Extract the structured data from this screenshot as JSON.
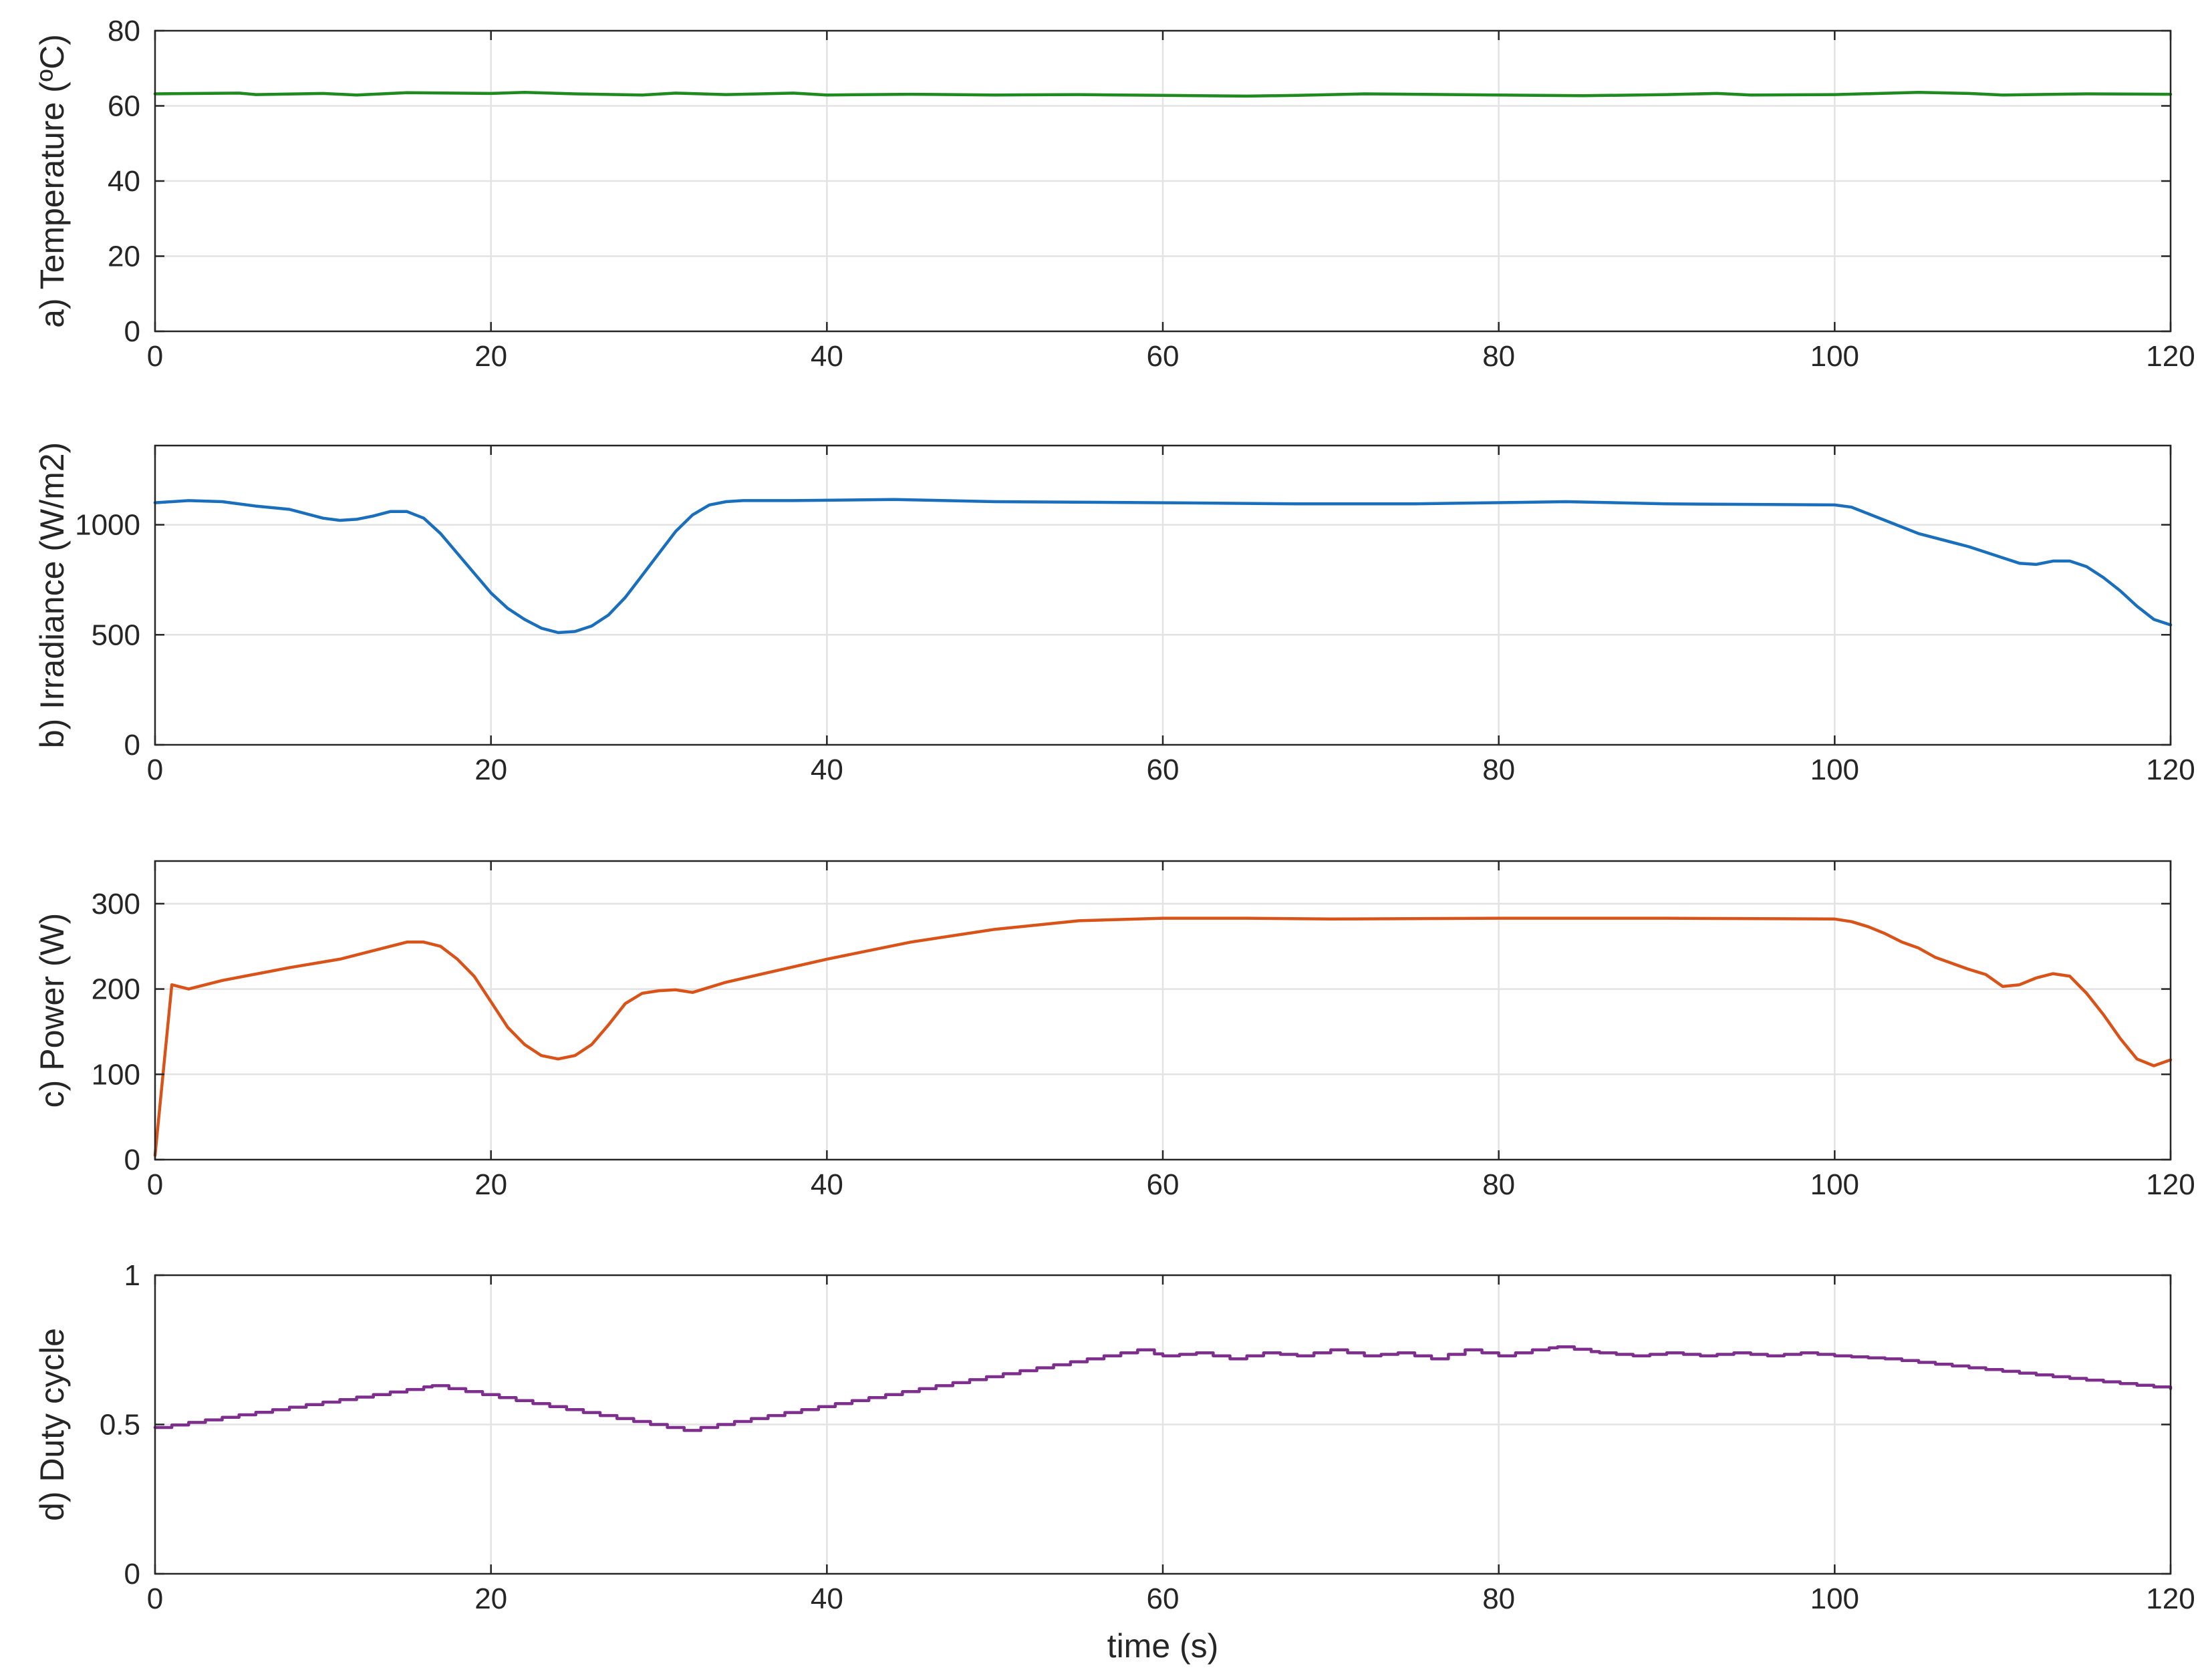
{
  "chart_data": [
    {
      "type": "line",
      "panel": "a",
      "title": "",
      "xlabel": "",
      "ylabel": "a) Temperature (ºC)",
      "xlim": [
        0,
        120
      ],
      "ylim": [
        0,
        80
      ],
      "xticks": [
        "0",
        "20",
        "40",
        "60",
        "80",
        "100",
        "120"
      ],
      "yticks": [
        "0",
        "20",
        "40",
        "60",
        "80"
      ],
      "grid": true,
      "series": [
        {
          "color": "#1f8a1f",
          "x": [
            0,
            5,
            6,
            10,
            12,
            15,
            20,
            22,
            25,
            29,
            31,
            34,
            38,
            40,
            45,
            50,
            55,
            60,
            65,
            68,
            72,
            75,
            80,
            85,
            90,
            93,
            95,
            100,
            105,
            108,
            110,
            115,
            120
          ],
          "y": [
            63.2,
            63.4,
            63.0,
            63.3,
            62.9,
            63.5,
            63.3,
            63.6,
            63.2,
            62.9,
            63.4,
            63.0,
            63.4,
            62.9,
            63.1,
            62.9,
            63.0,
            62.8,
            62.6,
            62.8,
            63.2,
            63.1,
            62.9,
            62.7,
            63.0,
            63.3,
            62.9,
            63.0,
            63.6,
            63.3,
            62.9,
            63.2,
            63.1
          ]
        }
      ]
    },
    {
      "type": "line",
      "panel": "b",
      "title": "",
      "xlabel": "",
      "ylabel": "b) Irradiance (W/m2)",
      "xlim": [
        0,
        120
      ],
      "ylim": [
        0,
        1360
      ],
      "xticks": [
        "0",
        "20",
        "40",
        "60",
        "80",
        "100",
        "120"
      ],
      "yticks": [
        "0",
        "500",
        "1000"
      ],
      "grid": true,
      "series": [
        {
          "color": "#1a6fbd",
          "x": [
            0,
            2,
            4,
            6,
            8,
            10,
            11,
            12,
            13,
            14,
            15,
            16,
            17,
            18,
            19,
            20,
            21,
            22,
            23,
            24,
            25,
            26,
            27,
            28,
            29,
            30,
            31,
            32,
            33,
            34,
            35,
            38,
            44,
            50,
            60,
            68,
            75,
            84,
            90,
            100,
            101,
            103,
            105,
            108,
            110,
            111,
            112,
            113,
            114,
            115,
            116,
            117,
            118,
            119,
            120
          ],
          "y": [
            1100,
            1110,
            1105,
            1085,
            1070,
            1030,
            1020,
            1025,
            1040,
            1060,
            1060,
            1030,
            960,
            870,
            780,
            690,
            620,
            570,
            530,
            510,
            515,
            540,
            590,
            670,
            770,
            870,
            970,
            1045,
            1090,
            1105,
            1110,
            1110,
            1115,
            1105,
            1100,
            1095,
            1095,
            1105,
            1095,
            1090,
            1080,
            1020,
            960,
            900,
            850,
            825,
            820,
            835,
            835,
            810,
            760,
            700,
            630,
            570,
            545
          ]
        }
      ]
    },
    {
      "type": "line",
      "panel": "c",
      "title": "",
      "xlabel": "",
      "ylabel": "c) Power (W)",
      "xlim": [
        0,
        120
      ],
      "ylim": [
        0,
        350
      ],
      "xticks": [
        "0",
        "20",
        "40",
        "60",
        "80",
        "100",
        "120"
      ],
      "yticks": [
        "0",
        "100",
        "200",
        "300"
      ],
      "grid": true,
      "series": [
        {
          "color": "#d95319",
          "x": [
            0,
            1,
            2,
            4,
            8,
            11,
            14,
            15,
            16,
            17,
            18,
            19,
            20,
            21,
            22,
            23,
            24,
            25,
            26,
            27,
            28,
            29,
            30,
            31,
            32,
            34,
            40,
            45,
            50,
            55,
            60,
            65,
            70,
            80,
            85,
            90,
            100,
            101,
            102,
            103,
            104,
            105,
            106,
            107,
            108,
            109,
            110,
            111,
            112,
            113,
            114,
            115,
            116,
            117,
            118,
            119,
            120
          ],
          "y": [
            5,
            205,
            200,
            210,
            225,
            235,
            250,
            255,
            255,
            250,
            235,
            215,
            185,
            155,
            135,
            122,
            118,
            122,
            135,
            158,
            183,
            195,
            198,
            199,
            196,
            208,
            235,
            255,
            270,
            280,
            283,
            283,
            282,
            283,
            283,
            283,
            282,
            279,
            273,
            265,
            255,
            248,
            237,
            230,
            223,
            217,
            203,
            205,
            213,
            218,
            215,
            195,
            170,
            142,
            118,
            110,
            117
          ]
        }
      ]
    },
    {
      "type": "line",
      "panel": "d",
      "title": "",
      "xlabel": "time (s)",
      "ylabel": "d) Duty cycle",
      "xlim": [
        0,
        120
      ],
      "ylim": [
        0,
        1
      ],
      "xticks": [
        "0",
        "20",
        "40",
        "60",
        "80",
        "100",
        "120"
      ],
      "yticks": [
        "0",
        "0.5",
        "1"
      ],
      "grid": true,
      "step": true,
      "series": [
        {
          "color": "#7e2f8e",
          "x": [
            0,
            16.5,
            31.5,
            58.5,
            60,
            62,
            64,
            66,
            68,
            70,
            72,
            74,
            76,
            78,
            80,
            82,
            83.5,
            86,
            88,
            90,
            92,
            94,
            96,
            98,
            100,
            103,
            108,
            113,
            120
          ],
          "y": [
            0.49,
            0.63,
            0.48,
            0.75,
            0.73,
            0.74,
            0.72,
            0.74,
            0.73,
            0.75,
            0.73,
            0.74,
            0.72,
            0.75,
            0.73,
            0.75,
            0.76,
            0.74,
            0.73,
            0.74,
            0.73,
            0.74,
            0.73,
            0.74,
            0.73,
            0.72,
            0.69,
            0.66,
            0.62
          ]
        }
      ]
    }
  ]
}
